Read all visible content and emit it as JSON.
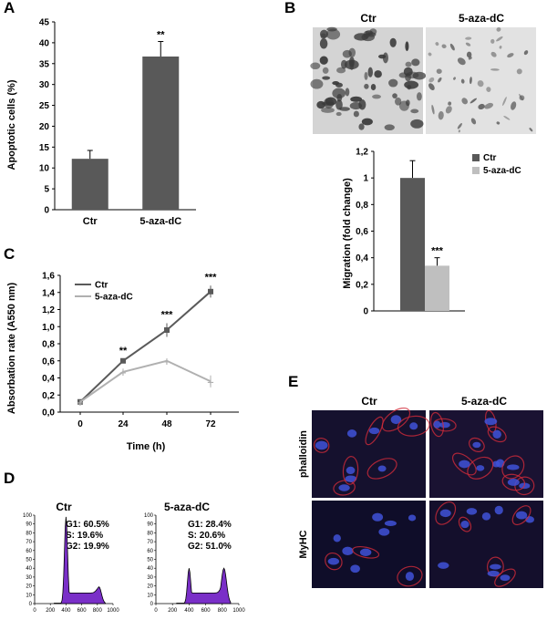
{
  "panels": {
    "A": {
      "letter": "A"
    },
    "B": {
      "letter": "B"
    },
    "C": {
      "letter": "C"
    },
    "D": {
      "letter": "D"
    },
    "E": {
      "letter": "E"
    }
  },
  "micrographs_B": {
    "labels": [
      "Ctr",
      "5-aza-dC"
    ]
  },
  "micrographs_E": {
    "col_labels": [
      "Ctr",
      "5-aza-dC"
    ],
    "row_labels": [
      "phalloidin",
      "MyHC"
    ]
  },
  "colors": {
    "dark_bar": "#595959",
    "light_bar": "#bfbfbf",
    "ctr_line": "#5a5a5a",
    "aza_line": "#b0b0b0",
    "histogram": "#7a2fc8"
  },
  "chart_data": [
    {
      "id": "A",
      "type": "bar",
      "categories": [
        "Ctr",
        "5-aza-dC"
      ],
      "values": [
        12.2,
        36.7
      ],
      "errors": [
        2.0,
        3.6
      ],
      "ylabel": "Apoptotic cells (%)",
      "ylim": [
        0,
        45
      ],
      "yticks": [
        "0",
        "5",
        "10",
        "15",
        "20",
        "25",
        "30",
        "35",
        "40",
        "45"
      ],
      "annotations": [
        "",
        "**"
      ],
      "grid": false
    },
    {
      "id": "B",
      "type": "bar",
      "series": [
        {
          "name": "Ctr",
          "values": [
            1.0
          ],
          "errors": [
            0.13
          ]
        },
        {
          "name": "5-aza-dC",
          "values": [
            0.34
          ],
          "errors": [
            0.06
          ]
        }
      ],
      "ylabel": "Migration (fold change)",
      "ylim": [
        0,
        1.2
      ],
      "yticks": [
        "0",
        "0,2",
        "0,4",
        "0,6",
        "0,8",
        "1",
        "1,2"
      ],
      "annotations": [
        "***"
      ],
      "legend": "right",
      "grid": false
    },
    {
      "id": "C",
      "type": "line",
      "x": [
        0,
        24,
        48,
        72
      ],
      "xticks": [
        "0",
        "24",
        "48",
        "72"
      ],
      "series": [
        {
          "name": "Ctr",
          "values": [
            0.12,
            0.6,
            0.96,
            1.41
          ],
          "errors": [
            0.01,
            0.02,
            0.08,
            0.07
          ]
        },
        {
          "name": "5-aza-dC",
          "values": [
            0.12,
            0.47,
            0.6,
            0.36
          ],
          "errors": [
            0.01,
            0.04,
            0.03,
            0.07
          ]
        }
      ],
      "annotations": [
        "",
        "**",
        "***",
        "***"
      ],
      "xlabel": "Time (h)",
      "ylabel": "Absorbation rate (A550 nm)",
      "ylim": [
        0,
        1.6
      ],
      "yticks": [
        "0,0",
        "0,2",
        "0,4",
        "0,6",
        "0,8",
        "1,0",
        "1,2",
        "1,4",
        "1,6"
      ],
      "legend": "top-left",
      "grid": false
    },
    {
      "id": "D",
      "type": "area",
      "histograms": [
        {
          "title": "Ctr",
          "stats": [
            "G1: 60.5%",
            "S: 19.6%",
            "G2: 19.9%"
          ],
          "g1_peak": 98,
          "g2_peak": 19
        },
        {
          "title": "5-aza-dC",
          "stats": [
            "G1: 28.4%",
            "S: 20.6%",
            "G2: 51.0%"
          ],
          "g1_peak": 40,
          "g2_peak": 40
        }
      ],
      "xlim": [
        0,
        1000
      ],
      "xticks": [
        "0",
        "200",
        "400",
        "600",
        "800",
        "1000"
      ],
      "ylim": [
        0,
        100
      ],
      "yticks": [
        "0",
        "10",
        "20",
        "30",
        "40",
        "50",
        "60",
        "70",
        "80",
        "90",
        "100"
      ]
    }
  ]
}
